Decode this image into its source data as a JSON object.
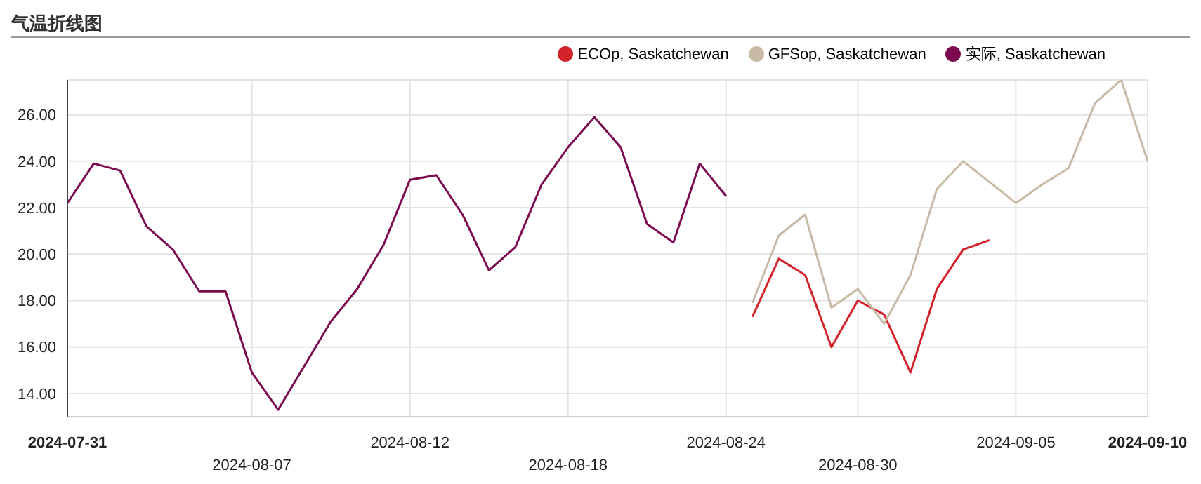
{
  "chart_data": {
    "type": "line",
    "title": "气温折线图",
    "categories": [
      "2024-07-31",
      null,
      null,
      null,
      null,
      null,
      null,
      "2024-08-07",
      null,
      null,
      null,
      null,
      null,
      "2024-08-12",
      null,
      null,
      null,
      null,
      null,
      "2024-08-18",
      null,
      null,
      null,
      null,
      null,
      "2024-08-24",
      null,
      null,
      null,
      null,
      "2024-08-30",
      null,
      null,
      null,
      null,
      null,
      "2024-09-05",
      null,
      null,
      null,
      null,
      "2024-09-10"
    ],
    "series": [
      {
        "name": "ECOp, Saskatchewan",
        "color": "#d2232a",
        "values": [
          null,
          null,
          null,
          null,
          null,
          null,
          null,
          null,
          null,
          null,
          null,
          null,
          null,
          null,
          null,
          null,
          null,
          null,
          null,
          null,
          null,
          null,
          null,
          null,
          null,
          null,
          17.3,
          19.8,
          19.1,
          16.0,
          18.0,
          17.4,
          14.9,
          18.5,
          20.2,
          20.6,
          null,
          null,
          null,
          null,
          null,
          null
        ]
      },
      {
        "name": "GFSop, Saskatchewan",
        "color": "#c8baa6",
        "values": [
          null,
          null,
          null,
          null,
          null,
          null,
          null,
          null,
          null,
          null,
          null,
          null,
          null,
          null,
          null,
          null,
          null,
          null,
          null,
          null,
          null,
          null,
          null,
          null,
          null,
          null,
          17.9,
          20.8,
          21.7,
          17.7,
          18.5,
          17.0,
          19.1,
          22.8,
          24.0,
          23.1,
          22.2,
          23.0,
          23.7,
          26.5,
          27.5,
          24.0
        ]
      },
      {
        "name": "实际, Saskatchewan",
        "color": "#7b0a4f",
        "values": [
          22.2,
          23.9,
          23.6,
          21.2,
          20.2,
          18.4,
          18.4,
          14.9,
          13.3,
          15.2,
          17.1,
          18.5,
          20.4,
          23.2,
          23.4,
          21.7,
          19.3,
          20.3,
          23.0,
          24.6,
          25.9,
          24.6,
          21.3,
          20.5,
          23.9,
          22.5,
          null,
          null,
          null,
          null,
          null,
          null,
          null,
          null,
          null,
          null,
          null,
          null,
          null,
          null,
          null,
          null
        ]
      }
    ],
    "ylim": [
      13,
      27.5
    ],
    "yticks": [
      {
        "value": 14,
        "label": "14.00"
      },
      {
        "value": 16,
        "label": "16.00"
      },
      {
        "value": 18,
        "label": "18.00"
      },
      {
        "value": 20,
        "label": "20.00"
      },
      {
        "value": 22,
        "label": "22.00"
      },
      {
        "value": 24,
        "label": "24.00"
      },
      {
        "value": 26,
        "label": "26.00"
      }
    ],
    "grid": true,
    "legend": "top right",
    "marker": "none",
    "line_style": "solid"
  }
}
